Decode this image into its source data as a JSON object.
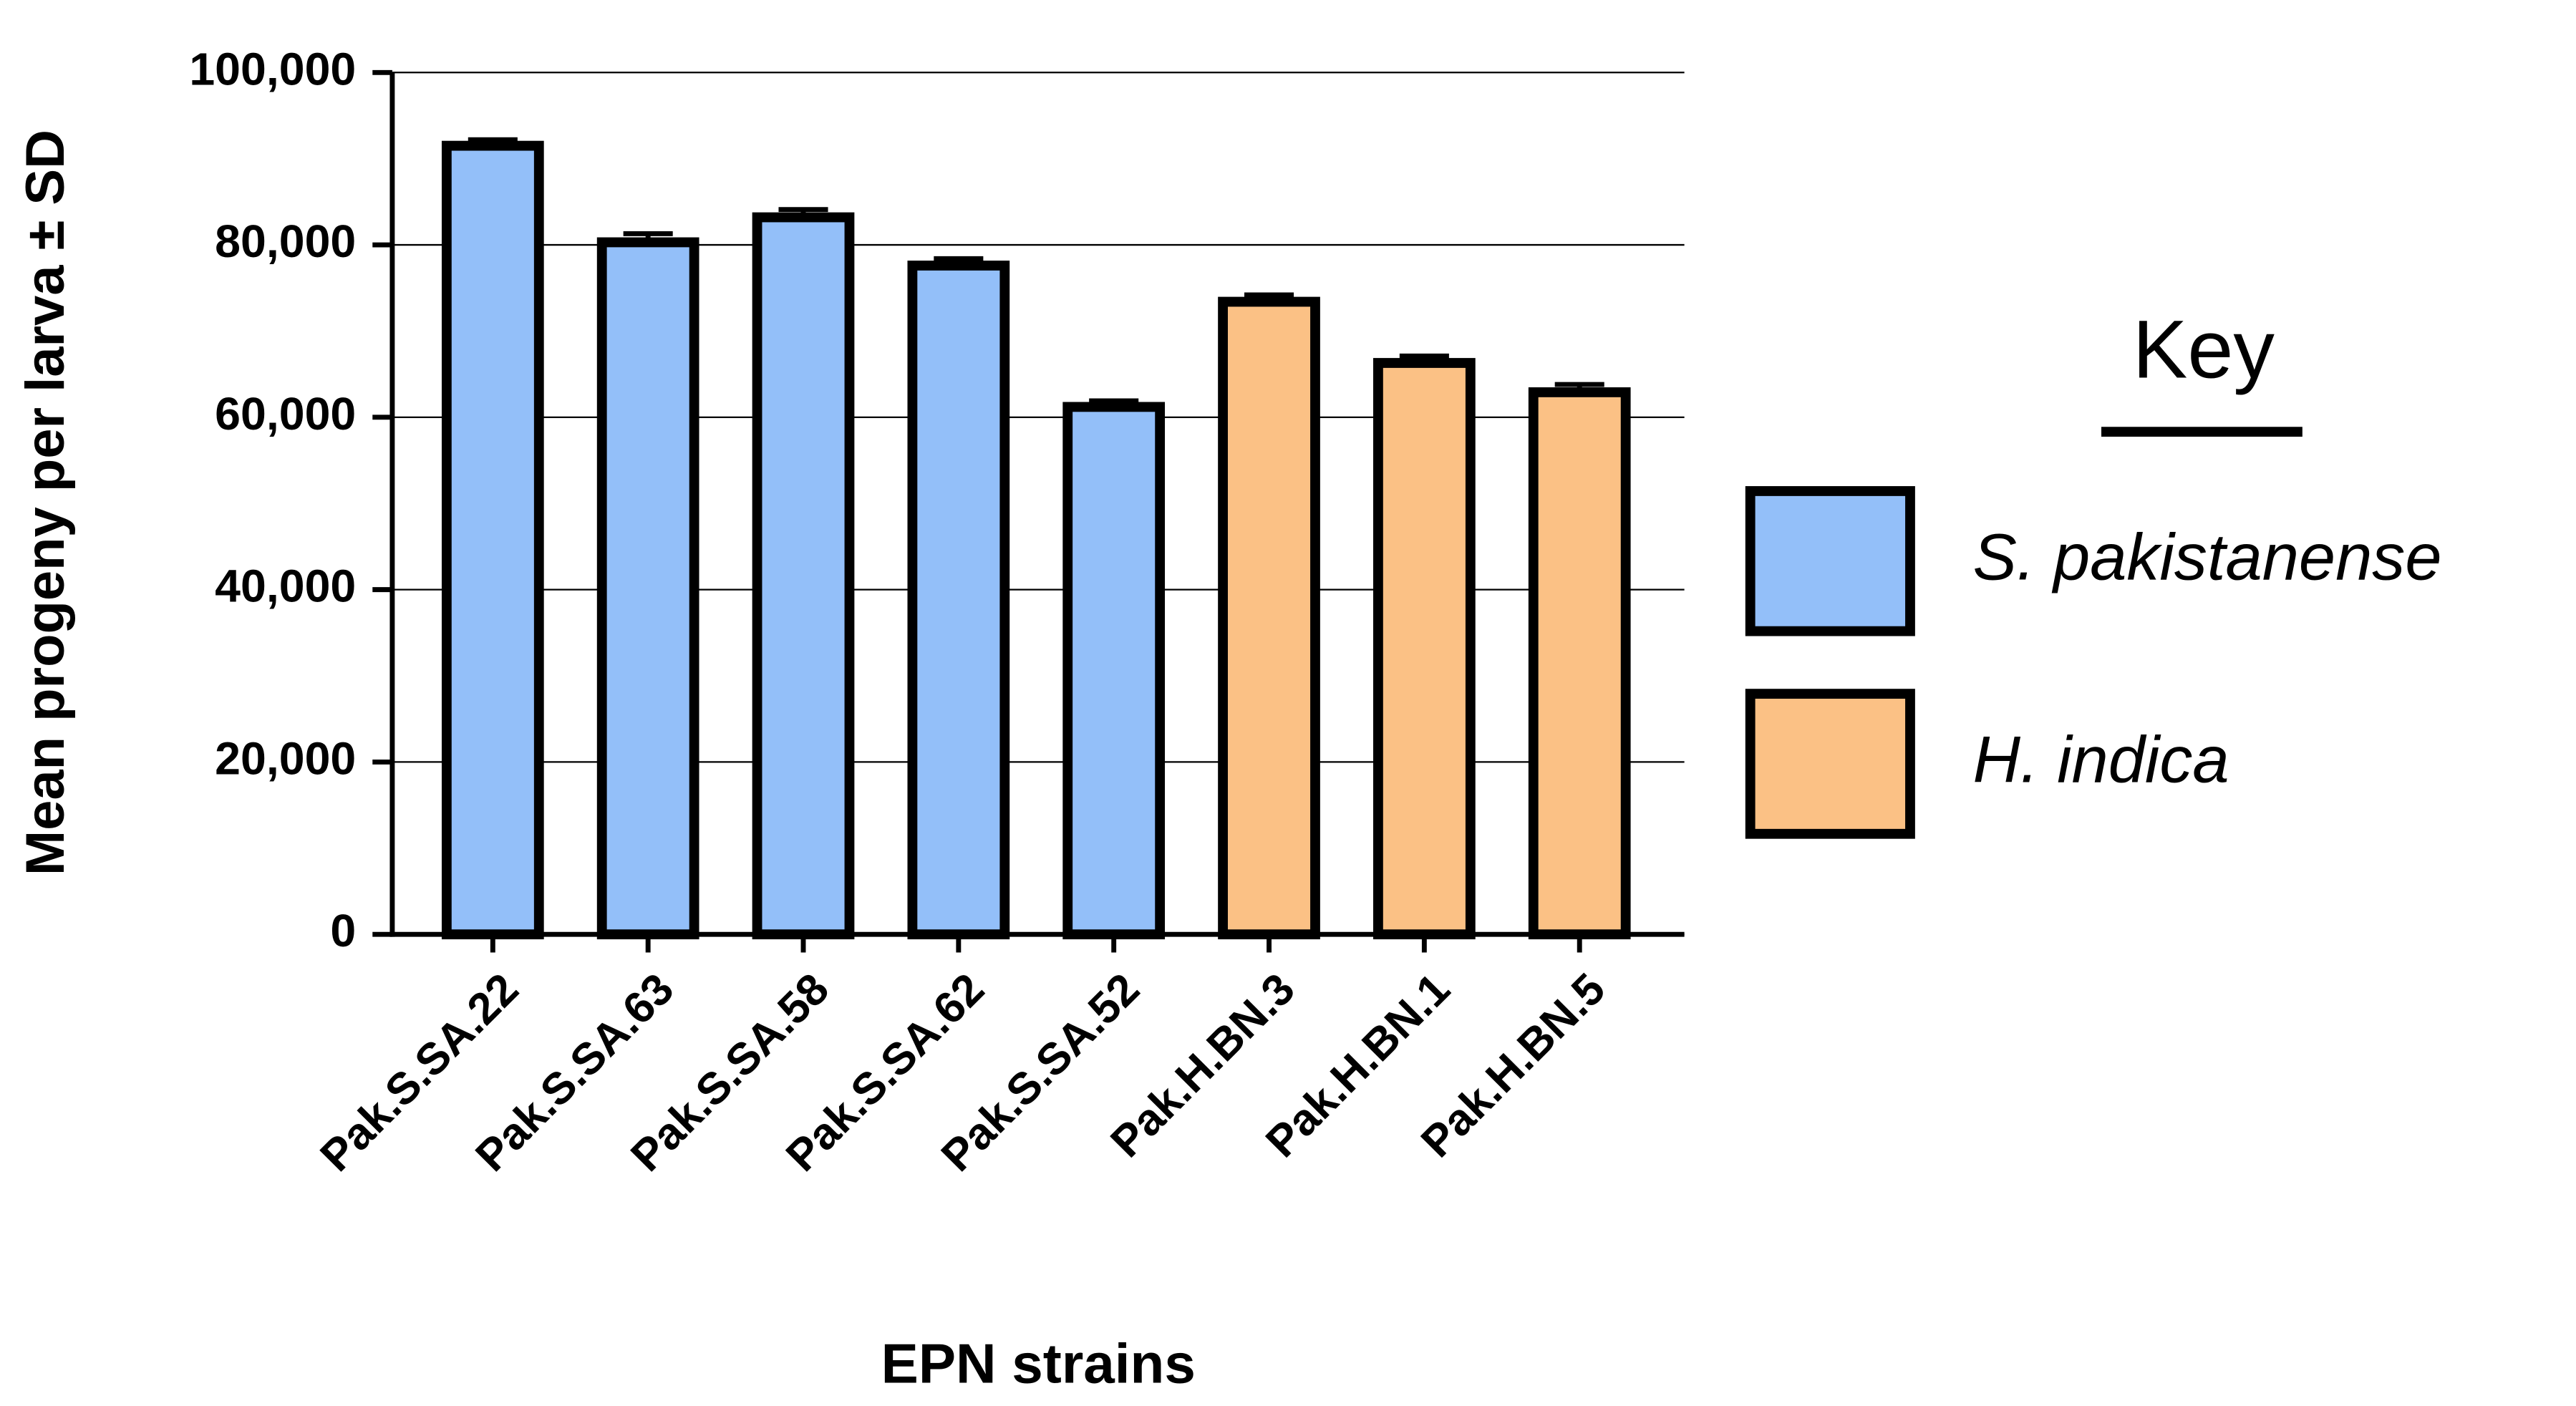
{
  "chart_data": {
    "type": "bar",
    "x_label": "EPN strains",
    "y_label": "Mean progeny per larva ± SD",
    "categories": [
      "Pak.S.SA.22",
      "Pak.S.SA.63",
      "Pak.S.SA.58",
      "Pak.S.SA.62",
      "Pak.S.SA.52",
      "Pak.H.BN.3",
      "Pak.H.BN.1",
      "Pak.H.BN.5"
    ],
    "series": [
      {
        "name": "S. pakistanense",
        "color": "#93bff9",
        "values": [
          91500,
          80300,
          83200,
          77600,
          61200,
          null,
          null,
          null
        ],
        "errors": [
          700,
          1000,
          900,
          800,
          700,
          null,
          null,
          null
        ]
      },
      {
        "name": "H. indica",
        "color": "#fbc185",
        "values": [
          null,
          null,
          null,
          null,
          null,
          73400,
          66300,
          62900
        ],
        "errors": [
          null,
          null,
          null,
          null,
          null,
          800,
          800,
          900
        ]
      }
    ],
    "ylim": [
      0,
      100000
    ],
    "yticks": [
      0,
      {
        "value": 20000,
        "label": "20,000"
      },
      {
        "value": 40000,
        "label": "40,000"
      },
      {
        "value": 60000,
        "label": "60,000"
      },
      {
        "value": 80000,
        "label": "80,000"
      },
      {
        "value": 100000,
        "label": "100,000"
      }
    ],
    "grid": true,
    "legend_title": "Key",
    "legend_position": "right"
  }
}
